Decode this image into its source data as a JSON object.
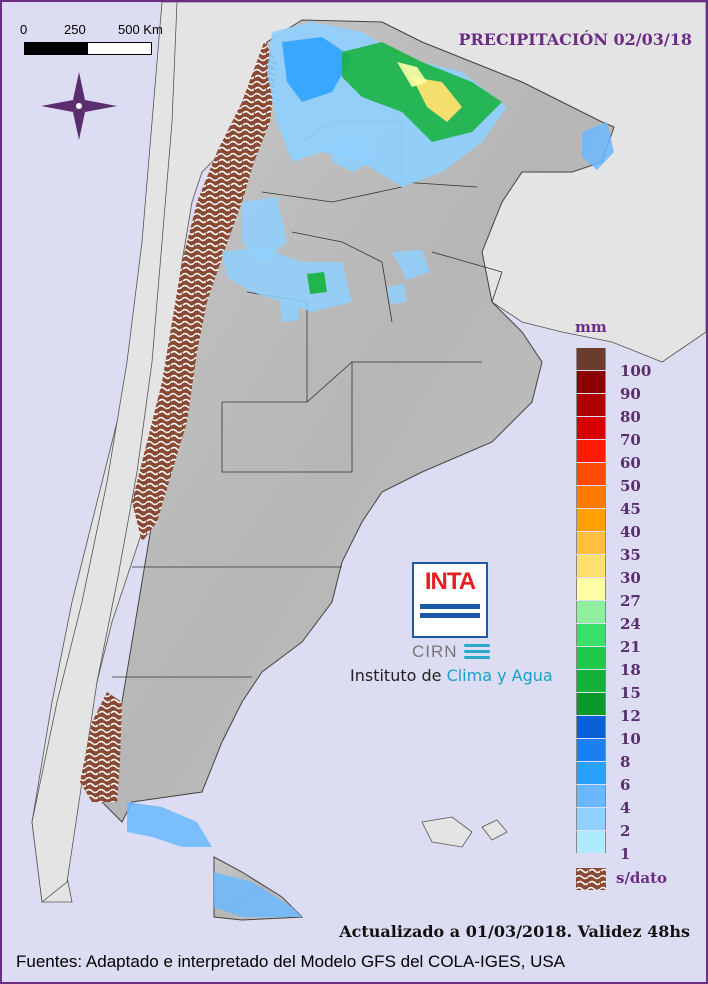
{
  "title": "PRECIPITACIÓN 02/03/18",
  "scale": {
    "labels": [
      "0",
      "250",
      "500 Km"
    ]
  },
  "compass": {
    "icon": "compass-rose-icon"
  },
  "legend": {
    "unit": "mm",
    "items": [
      {
        "label": "100",
        "color": "#6b3b2e"
      },
      {
        "label": "90",
        "color": "#8b0000"
      },
      {
        "label": "80",
        "color": "#b00000"
      },
      {
        "label": "70",
        "color": "#d80000"
      },
      {
        "label": "60",
        "color": "#ff1a00"
      },
      {
        "label": "50",
        "color": "#ff4a00"
      },
      {
        "label": "45",
        "color": "#ff7a00"
      },
      {
        "label": "40",
        "color": "#ffa000"
      },
      {
        "label": "35",
        "color": "#ffc040"
      },
      {
        "label": "30",
        "color": "#ffe070"
      },
      {
        "label": "27",
        "color": "#ffffa8"
      },
      {
        "label": "24",
        "color": "#90f0a0"
      },
      {
        "label": "21",
        "color": "#3adf6a"
      },
      {
        "label": "18",
        "color": "#22c84a"
      },
      {
        "label": "15",
        "color": "#14b23a"
      },
      {
        "label": "12",
        "color": "#0a9a2a"
      },
      {
        "label": "10",
        "color": "#0a5fd6"
      },
      {
        "label": "8",
        "color": "#1a7ff0"
      },
      {
        "label": "6",
        "color": "#2aa0ff"
      },
      {
        "label": "4",
        "color": "#6ab8ff"
      },
      {
        "label": "2",
        "color": "#8fd0ff"
      },
      {
        "label": "1",
        "color": "#b0eaff"
      }
    ],
    "no_data_label": "s/dato",
    "no_data_color": "#8b4a34"
  },
  "logo": {
    "inta": "INTA",
    "cirn": "CIRN",
    "institute_prefix": "Instituto de ",
    "institute_highlight": "Clima y Agua"
  },
  "updated": "Actualizado a 01/03/2018. Validez 48hs",
  "sources": "Fuentes: Adaptado e interpretado del Modelo GFS del COLA-IGES, USA"
}
